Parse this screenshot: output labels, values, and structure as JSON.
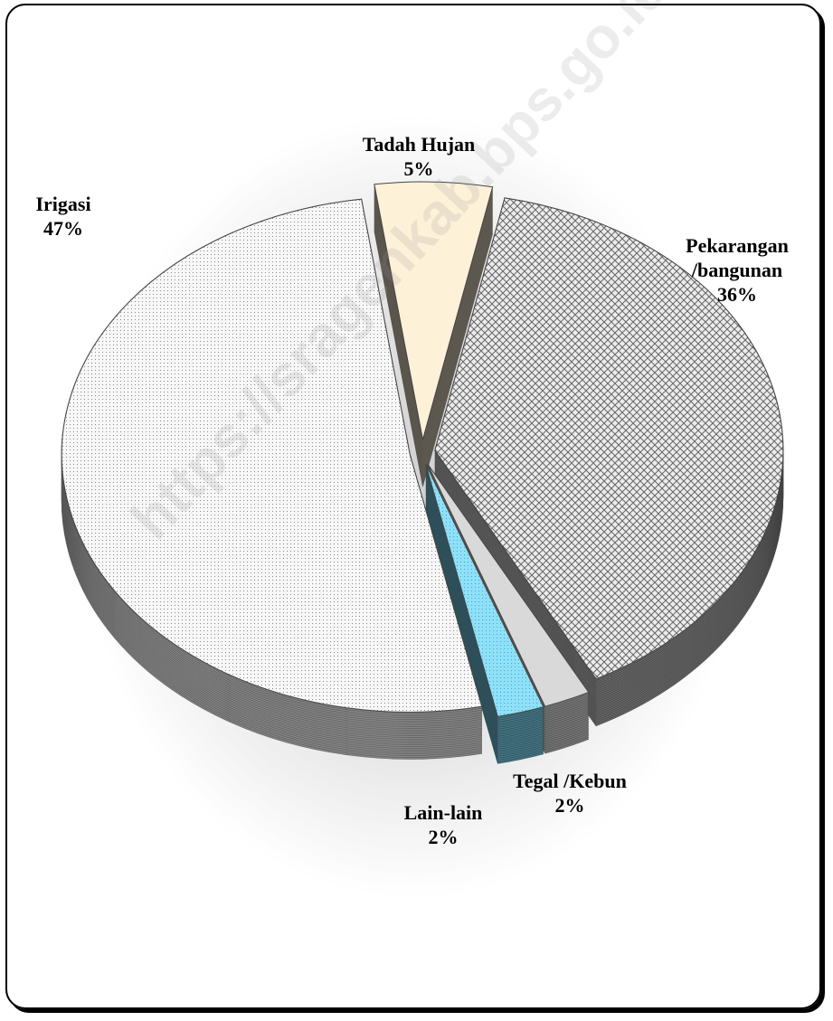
{
  "chart_data": {
    "type": "pie",
    "categories": [
      "Tadah Hujan",
      "Pekarangan /bangunan",
      "Tegal /Kebun",
      "Lain-lain",
      "Irigasi"
    ],
    "values": [
      5,
      36,
      2,
      2,
      47
    ],
    "value_labels": [
      "5%",
      "36%",
      "2%",
      "2%",
      "47%"
    ],
    "colors": [
      "#fdf1d8",
      "#bdbdbd",
      "#d9d9d9",
      "#7fd6f2",
      "#f4f4f4"
    ],
    "watermark": "https://sragenkab.bps.go.id"
  }
}
